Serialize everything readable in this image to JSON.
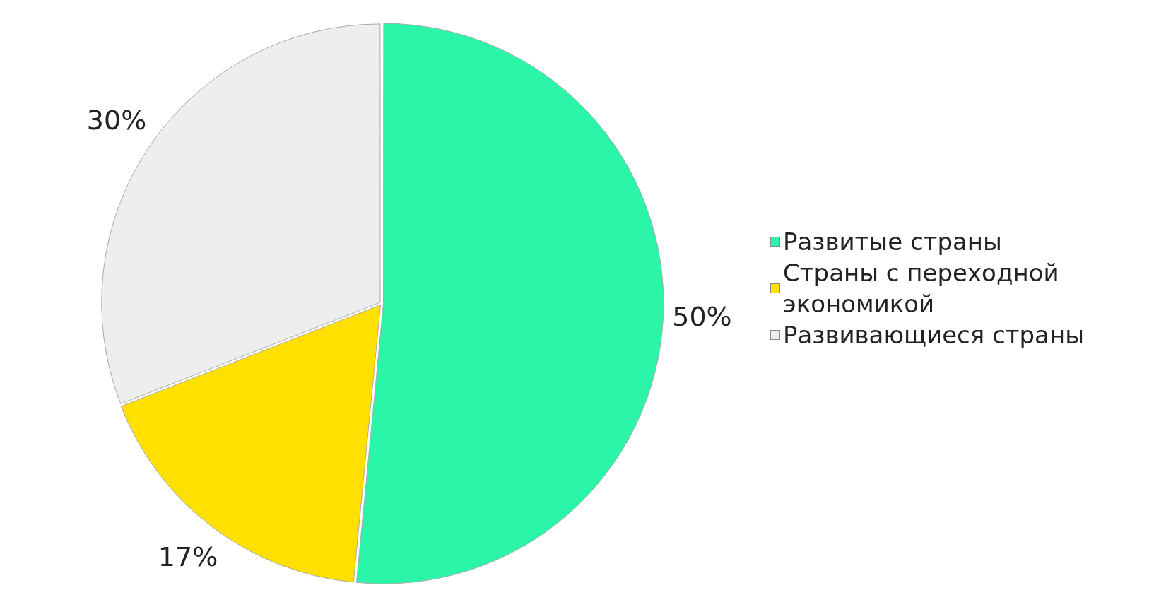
{
  "chart_data": {
    "type": "pie",
    "categories": [
      "Развитые страны",
      "Страны с переходной экономикой",
      "Развивающиеся страны"
    ],
    "values": [
      50,
      17,
      30
    ],
    "colors": [
      "#2af5a8",
      "#ffe000",
      "#eeeeee"
    ],
    "value_labels": [
      "50%",
      "17%",
      "30%"
    ],
    "legend": "right"
  }
}
